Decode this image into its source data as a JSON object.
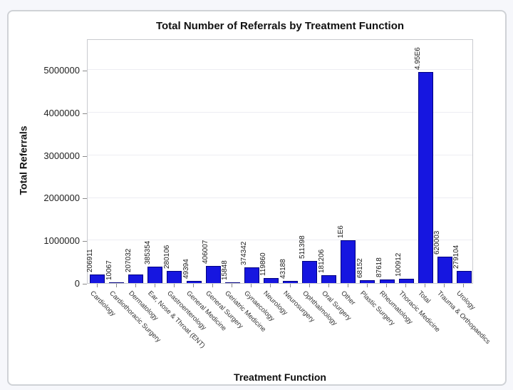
{
  "chart_data": {
    "type": "bar",
    "title": "Total Number of Referrals by Treatment Function",
    "xlabel": "Treatment Function",
    "ylabel": "Total Referrals",
    "categories": [
      "Cardiology",
      "Cardiothoracic Surgery",
      "Dermatology",
      "Ear, Nose & Throat (ENT)",
      "Gastroenterology",
      "General Medicine",
      "General Surgery",
      "Geriatric Medicine",
      "Gynaecology",
      "Neurology",
      "Neurosurgery",
      "Ophthalmology",
      "Oral Surgery",
      "Other",
      "Plastic Surgery",
      "Rheumatology",
      "Thoracic Medicine",
      "Total",
      "Trauma & Orthopaedics",
      "Urology"
    ],
    "values": [
      206911,
      10067,
      207032,
      385354,
      280106,
      49394,
      406007,
      15848,
      374342,
      119860,
      43188,
      511398,
      181206,
      1000000,
      68152,
      87618,
      100912,
      4950000,
      620003,
      279104
    ],
    "bar_labels": [
      "206911",
      "10067",
      "207032",
      "385354",
      "280106",
      "49394",
      "406007",
      "15848",
      "374342",
      "119860",
      "43188",
      "511398",
      "181206",
      "1E6",
      "68152",
      "87618",
      "100912",
      "4.95E6",
      "620003",
      "279104"
    ],
    "yticks": [
      0,
      1000000,
      2000000,
      3000000,
      4000000,
      5000000
    ],
    "ytick_labels": [
      "0",
      "1000000",
      "2000000",
      "3000000",
      "4000000",
      "5000000"
    ],
    "ylim": [
      0,
      5740000
    ],
    "grid": "horizontal gridlines at each y tick, very light gray",
    "legend": "none",
    "colors": {
      "bar_fill": "#1616e0",
      "bar_border": "#000080",
      "gridline": "#ededf2",
      "plot_border": "#c9cacf",
      "page_background": "#f6f7fb",
      "card_background": "#ffffff"
    }
  }
}
